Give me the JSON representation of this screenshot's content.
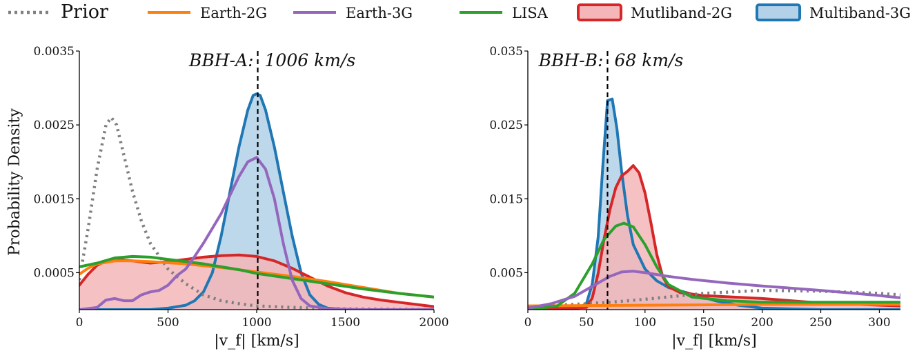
{
  "legend": [
    {
      "label": "Prior",
      "color": "#7f7f7f",
      "style": "dotted-line"
    },
    {
      "label": "Earth-2G",
      "color": "#ff7f0e",
      "style": "line"
    },
    {
      "label": "Earth-3G",
      "color": "#9467bd",
      "style": "line"
    },
    {
      "label": "LISA",
      "color": "#2ca02c",
      "style": "line"
    },
    {
      "label": "Mutliband-2G",
      "color": "#d62728",
      "fill": "#f4b6b8",
      "style": "filled"
    },
    {
      "label": "Multiband-3G",
      "color": "#1f77b4",
      "fill": "#b3d1e8",
      "style": "filled"
    }
  ],
  "chart_data": [
    {
      "type": "line",
      "annotation": "BBH-A:  1006 km/s",
      "marker_value": 1006,
      "xlabel": "|v_f| [km/s]",
      "ylabel": "Probability Density",
      "xlim": [
        0,
        2000
      ],
      "ylim": [
        0,
        0.0035
      ],
      "xticks": [
        0,
        500,
        1000,
        1500,
        2000
      ],
      "xtick_labels": [
        "0",
        "500",
        "1000",
        "1500",
        "2000"
      ],
      "yticks": [
        0.0005,
        0.0015,
        0.0025,
        0.0035
      ],
      "ytick_labels": [
        "0.0005",
        "0.0015",
        "0.0025",
        "0.0035"
      ],
      "series": [
        {
          "name": "Prior",
          "x": [
            0,
            50,
            100,
            150,
            180,
            210,
            250,
            300,
            350,
            400,
            500,
            600,
            700,
            800,
            900,
            1000,
            1200,
            1500,
            2000
          ],
          "y": [
            0.0004,
            0.0011,
            0.0019,
            0.0025,
            0.0026,
            0.0025,
            0.0021,
            0.0016,
            0.0012,
            0.0009,
            0.00055,
            0.00035,
            0.0002,
            0.00012,
            8e-05,
            5e-05,
            3e-05,
            1e-05,
            0.0
          ]
        },
        {
          "name": "Earth-2G",
          "x": [
            0,
            50,
            100,
            200,
            300,
            400,
            600,
            800,
            1000,
            1200,
            1400,
            1600,
            1800,
            2000
          ],
          "y": [
            0.00048,
            0.00056,
            0.00062,
            0.00066,
            0.00066,
            0.00065,
            0.00062,
            0.00057,
            0.00051,
            0.00045,
            0.00038,
            0.0003,
            0.00022,
            0.00017
          ]
        },
        {
          "name": "Earth-3G",
          "x": [
            0,
            100,
            150,
            200,
            250,
            300,
            350,
            400,
            450,
            500,
            550,
            600,
            650,
            700,
            750,
            800,
            850,
            900,
            950,
            1000,
            1050,
            1100,
            1150,
            1200,
            1250,
            1300,
            1400,
            1600,
            2000
          ],
          "y": [
            0.0,
            3e-05,
            0.00013,
            0.00015,
            0.00012,
            0.00012,
            0.0002,
            0.00024,
            0.00026,
            0.00033,
            0.00046,
            0.00055,
            0.00072,
            0.0009,
            0.0011,
            0.0013,
            0.00155,
            0.0018,
            0.002,
            0.00206,
            0.0019,
            0.0015,
            0.0009,
            0.0004,
            0.00015,
            5e-05,
            1e-05,
            0.0,
            0.0
          ]
        },
        {
          "name": "LISA",
          "x": [
            0,
            100,
            200,
            300,
            400,
            500,
            700,
            900,
            1000,
            1200,
            1400,
            1600,
            1800,
            2000
          ],
          "y": [
            0.00058,
            0.00063,
            0.0007,
            0.00072,
            0.00071,
            0.00068,
            0.00062,
            0.00054,
            0.00049,
            0.00042,
            0.00035,
            0.00028,
            0.00022,
            0.00017
          ]
        },
        {
          "name": "Mutliband-2G",
          "x": [
            0,
            50,
            100,
            150,
            200,
            300,
            400,
            500,
            600,
            700,
            800,
            900,
            1000,
            1100,
            1200,
            1300,
            1400,
            1500,
            1600,
            1700,
            1800,
            1900,
            2000
          ],
          "y": [
            0.00033,
            0.00048,
            0.0006,
            0.00066,
            0.00068,
            0.00066,
            0.00063,
            0.00065,
            0.00068,
            0.00071,
            0.00073,
            0.00074,
            0.00072,
            0.00066,
            0.00056,
            0.00044,
            0.00032,
            0.00023,
            0.00017,
            0.00013,
            0.0001,
            7e-05,
            4e-05
          ]
        },
        {
          "name": "Multiband-3G",
          "x": [
            0,
            400,
            500,
            600,
            650,
            700,
            750,
            800,
            850,
            900,
            950,
            980,
            1000,
            1020,
            1050,
            1100,
            1150,
            1200,
            1250,
            1300,
            1350,
            1400,
            1500,
            2000
          ],
          "y": [
            0.0,
            0.0,
            2e-05,
            6e-05,
            0.00012,
            0.00024,
            0.0005,
            0.001,
            0.0016,
            0.0022,
            0.0027,
            0.0029,
            0.00292,
            0.0029,
            0.0027,
            0.0022,
            0.0016,
            0.001,
            0.0005,
            0.0002,
            7e-05,
            2e-05,
            0.0,
            0.0
          ]
        }
      ]
    },
    {
      "type": "line",
      "annotation": "BBH-B:  68 km/s",
      "marker_value": 68,
      "xlabel": "|v_f| [km/s]",
      "ylabel": "",
      "xlim": [
        0,
        318
      ],
      "ylim": [
        0,
        0.035
      ],
      "xticks": [
        0,
        50,
        100,
        150,
        200,
        250,
        300
      ],
      "xtick_labels": [
        "0",
        "50",
        "100",
        "150",
        "200",
        "250",
        "300"
      ],
      "yticks": [
        0.005,
        0.015,
        0.025,
        0.035
      ],
      "ytick_labels": [
        "0.005",
        "0.015",
        "0.025",
        "0.035"
      ],
      "series": [
        {
          "name": "Prior",
          "x": [
            0,
            50,
            70,
            100,
            150,
            200,
            250,
            300,
            318
          ],
          "y": [
            0.0004,
            0.0008,
            0.001,
            0.0014,
            0.0022,
            0.0026,
            0.0025,
            0.0022,
            0.002
          ]
        },
        {
          "name": "Earth-2G",
          "x": [
            0,
            100,
            200,
            318
          ],
          "y": [
            0.0005,
            0.0006,
            0.0007,
            0.0007
          ]
        },
        {
          "name": "Earth-3G",
          "x": [
            0,
            20,
            40,
            60,
            70,
            80,
            90,
            100,
            120,
            140,
            170,
            200,
            250,
            300,
            318
          ],
          "y": [
            0.0002,
            0.0008,
            0.0018,
            0.0036,
            0.0045,
            0.0051,
            0.0052,
            0.005,
            0.0045,
            0.0041,
            0.0036,
            0.0032,
            0.0026,
            0.0019,
            0.0016
          ]
        },
        {
          "name": "LISA",
          "x": [
            0,
            25,
            40,
            55,
            65,
            75,
            82,
            90,
            100,
            110,
            120,
            140,
            170,
            200,
            250,
            318
          ],
          "y": [
            0.0,
            0.0005,
            0.0022,
            0.0062,
            0.0095,
            0.0113,
            0.0117,
            0.0112,
            0.0088,
            0.0058,
            0.0034,
            0.0017,
            0.0012,
            0.001,
            0.001,
            0.001
          ]
        },
        {
          "name": "Mutliband-2G",
          "x": [
            0,
            50,
            55,
            60,
            65,
            70,
            75,
            80,
            85,
            90,
            95,
            100,
            105,
            110,
            115,
            120,
            130,
            150,
            200,
            250,
            318
          ],
          "y": [
            0.0,
            0.0003,
            0.0016,
            0.0049,
            0.0095,
            0.0135,
            0.0165,
            0.0181,
            0.0187,
            0.0195,
            0.0185,
            0.0158,
            0.0118,
            0.0075,
            0.0045,
            0.0031,
            0.0023,
            0.0019,
            0.0015,
            0.0009,
            0.0005
          ]
        },
        {
          "name": "Multiband-3G",
          "x": [
            0,
            40,
            50,
            55,
            60,
            64,
            68,
            72,
            76,
            80,
            85,
            90,
            100,
            110,
            120,
            140,
            160,
            180,
            200,
            250,
            318
          ],
          "y": [
            0.0,
            0.0,
            0.0008,
            0.0035,
            0.0098,
            0.0195,
            0.0283,
            0.0285,
            0.0245,
            0.0188,
            0.0128,
            0.0088,
            0.0055,
            0.0039,
            0.003,
            0.0021,
            0.0012,
            0.0006,
            0.0002,
            0.0,
            0.0
          ]
        }
      ]
    }
  ]
}
